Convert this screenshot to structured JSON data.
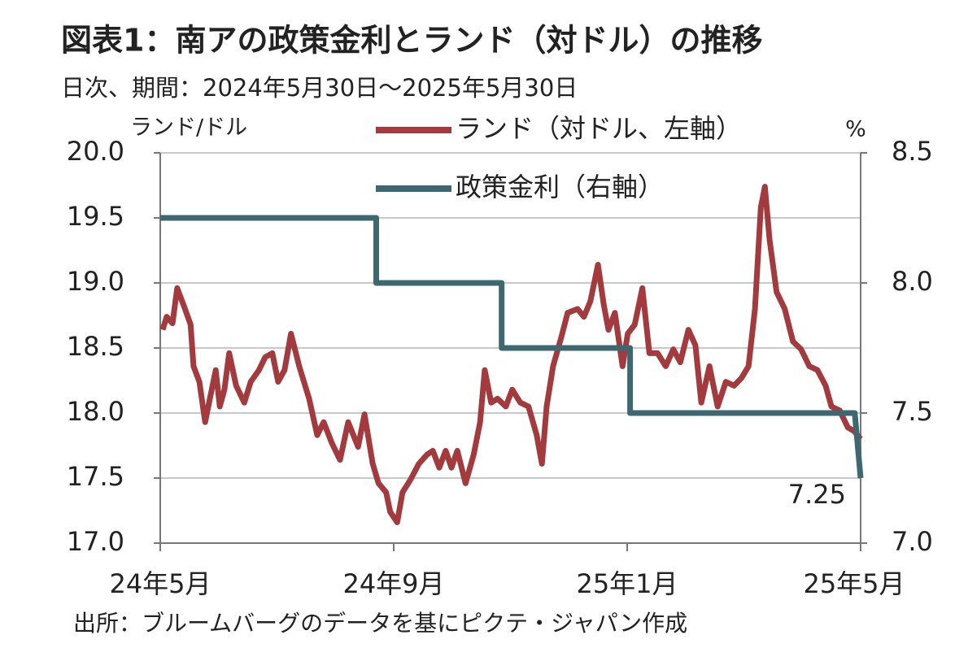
{
  "chart_data": {
    "type": "line",
    "title": "図表1：南アの政策金利とランド（対ドル）の推移",
    "subtitle": "日次、期間：2024年5月30日～2025年5月30日",
    "y_label": "ランド/ドル",
    "y2_label": "%",
    "source": "出所：ブルームバーグのデータを基にピクテ・ジャパン作成",
    "annotation": "7.25",
    "xlim": [
      0,
      12
    ],
    "xticks": [
      {
        "value": 0,
        "label": "24年5月"
      },
      {
        "value": 4,
        "label": "24年9月"
      },
      {
        "value": 8,
        "label": "25年1月"
      },
      {
        "value": 12,
        "label": "25年5月"
      }
    ],
    "ylim": [
      17,
      20
    ],
    "yticks": [
      {
        "value": 17,
        "label": "17.0"
      },
      17.5,
      {
        "value": 18,
        "label": "18.0"
      },
      18.5,
      {
        "value": 19,
        "label": "19.0"
      },
      19.5,
      {
        "value": 20,
        "label": "20.0"
      }
    ],
    "y2lim": [
      7,
      8.5
    ],
    "y2ticks": [
      {
        "value": 7,
        "label": "7.0"
      },
      7.5,
      {
        "value": 8,
        "label": "8.0"
      },
      8.5
    ],
    "grid": true,
    "series": [
      {
        "name": "ランド（対ドル、左軸）",
        "color": "#a23a3e",
        "axis": "y",
        "x": [
          0.04,
          0.11,
          0.21,
          0.29,
          0.4,
          0.52,
          0.57,
          0.67,
          0.77,
          0.85,
          0.95,
          1.02,
          1.1,
          1.18,
          1.3,
          1.44,
          1.55,
          1.69,
          1.8,
          1.92,
          2.02,
          2.13,
          2.24,
          2.38,
          2.55,
          2.69,
          2.8,
          2.94,
          3.08,
          3.22,
          3.39,
          3.5,
          3.64,
          3.74,
          3.87,
          3.94,
          4.06,
          4.15,
          4.29,
          4.43,
          4.57,
          4.67,
          4.78,
          4.89,
          4.99,
          5.09,
          5.23,
          5.37,
          5.48,
          5.56,
          5.67,
          5.78,
          5.92,
          6.03,
          6.17,
          6.31,
          6.45,
          6.54,
          6.62,
          6.73,
          6.87,
          6.98,
          7.15,
          7.26,
          7.37,
          7.5,
          7.6,
          7.68,
          7.79,
          7.92,
          8.01,
          8.13,
          8.26,
          8.38,
          8.52,
          8.66,
          8.79,
          8.91,
          9.05,
          9.17,
          9.27,
          9.41,
          9.55,
          9.69,
          9.83,
          9.96,
          10.08,
          10.19,
          10.29,
          10.36,
          10.44,
          10.56,
          10.7,
          10.84,
          10.98,
          11.12,
          11.26,
          11.4,
          11.5,
          11.64,
          11.78,
          11.89,
          12.0
        ],
        "values": [
          18.64,
          18.74,
          18.69,
          18.96,
          18.83,
          18.68,
          18.36,
          18.24,
          17.93,
          18.11,
          18.33,
          18.05,
          18.18,
          18.46,
          18.21,
          18.08,
          18.24,
          18.33,
          18.43,
          18.46,
          18.24,
          18.33,
          18.61,
          18.36,
          18.11,
          17.83,
          17.93,
          17.77,
          17.64,
          17.93,
          17.74,
          17.99,
          17.61,
          17.46,
          17.39,
          17.24,
          17.16,
          17.39,
          17.49,
          17.61,
          17.68,
          17.71,
          17.58,
          17.71,
          17.58,
          17.71,
          17.46,
          17.68,
          17.93,
          18.33,
          18.08,
          18.11,
          18.05,
          18.18,
          18.08,
          18.05,
          17.83,
          17.61,
          18.05,
          18.36,
          18.58,
          18.77,
          18.8,
          18.74,
          18.86,
          19.14,
          18.83,
          18.64,
          18.77,
          18.36,
          18.61,
          18.68,
          18.96,
          18.46,
          18.46,
          18.36,
          18.49,
          18.39,
          18.64,
          18.52,
          18.08,
          18.36,
          18.05,
          18.24,
          18.21,
          18.27,
          18.36,
          18.8,
          19.58,
          19.74,
          19.33,
          18.93,
          18.8,
          18.55,
          18.49,
          18.36,
          18.33,
          18.21,
          18.05,
          18.02,
          17.89,
          17.86,
          17.8
        ]
      },
      {
        "name": "政策金利（右軸）",
        "color": "#3d6870",
        "axis": "y2",
        "x": [
          0,
          3.7,
          3.7,
          5.85,
          5.85,
          8.05,
          8.05,
          11.9,
          12
        ],
        "values": [
          8.25,
          8.25,
          8.0,
          8.0,
          7.75,
          7.75,
          7.5,
          7.5,
          7.25
        ]
      }
    ]
  }
}
